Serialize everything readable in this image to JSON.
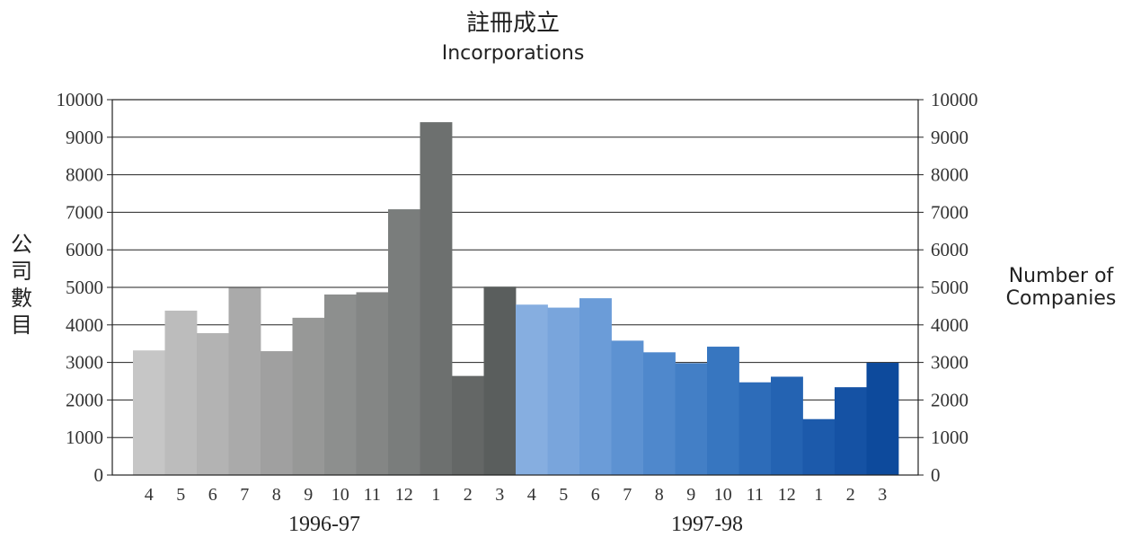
{
  "chart_data": {
    "type": "bar",
    "title": "註冊成立",
    "subtitle": "Incorporations",
    "ylabel_left": [
      "公",
      "司",
      "數",
      "目"
    ],
    "ylabel_right": [
      "Number of",
      "Companies"
    ],
    "ylim": [
      0,
      10000
    ],
    "yticks": [
      0,
      1000,
      2000,
      3000,
      4000,
      5000,
      6000,
      7000,
      8000,
      9000,
      10000
    ],
    "grid": true,
    "groups": [
      {
        "label": "1996-97",
        "categories": [
          "4",
          "5",
          "6",
          "7",
          "8",
          "9",
          "10",
          "11",
          "12",
          "1",
          "2",
          "3"
        ],
        "values": [
          3320,
          4380,
          3780,
          4990,
          3300,
          4190,
          4810,
          4870,
          7080,
          9400,
          2640,
          5020
        ],
        "colors": [
          "#c6c6c6",
          "#bcbcbc",
          "#b3b3b3",
          "#aaaaaa",
          "#a0a0a0",
          "#979897",
          "#8d8f8e",
          "#848685",
          "#7a7d7c",
          "#6d706f",
          "#646766",
          "#5a5e5d"
        ]
      },
      {
        "label": "1997-98",
        "categories": [
          "4",
          "5",
          "6",
          "7",
          "8",
          "9",
          "10",
          "11",
          "12",
          "1",
          "2",
          "3"
        ],
        "values": [
          4540,
          4460,
          4710,
          3580,
          3270,
          2980,
          3420,
          2470,
          2620,
          1490,
          2340,
          2990
        ],
        "colors": [
          "#86aee0",
          "#79a5dc",
          "#6b9cd8",
          "#5d92d2",
          "#4f88cc",
          "#437fc6",
          "#3776c0",
          "#2d6cb9",
          "#2463b2",
          "#1c5aab",
          "#1552a4",
          "#0d4a9c"
        ]
      }
    ]
  }
}
